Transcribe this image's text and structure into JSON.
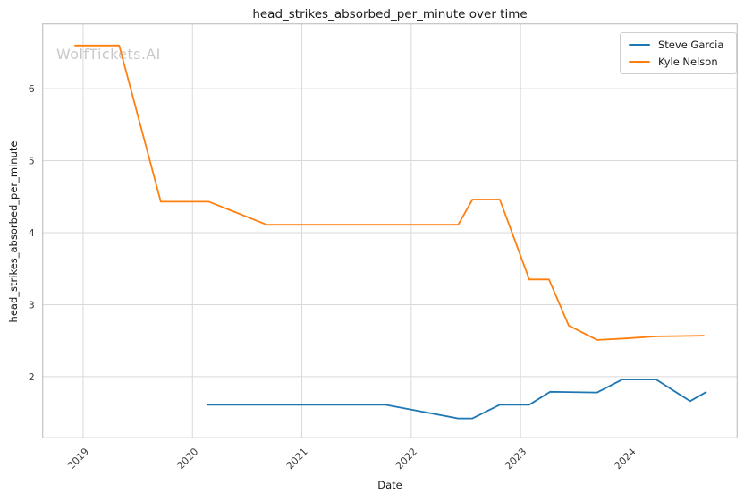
{
  "figure": {
    "watermark": "WolfTickets.AI"
  },
  "chart_data": {
    "type": "line",
    "title": "head_strikes_absorbed_per_minute over time",
    "xlabel": "Date",
    "ylabel": "head_strikes_absorbed_per_minute",
    "xlim": [
      2018.63,
      2024.98
    ],
    "ylim": [
      1.15,
      6.9
    ],
    "xticks": [
      2019,
      2020,
      2021,
      2022,
      2023,
      2024
    ],
    "yticks": [
      2,
      3,
      4,
      5,
      6
    ],
    "grid": true,
    "legend_position": "upper right",
    "series": [
      {
        "name": "Steve Garcia",
        "color": "#1f77b4",
        "points": [
          [
            2020.13,
            1.61
          ],
          [
            2021.76,
            1.61
          ],
          [
            2022.43,
            1.42
          ],
          [
            2022.56,
            1.42
          ],
          [
            2022.81,
            1.61
          ],
          [
            2023.08,
            1.61
          ],
          [
            2023.27,
            1.79
          ],
          [
            2023.7,
            1.78
          ],
          [
            2023.93,
            1.96
          ],
          [
            2024.24,
            1.96
          ],
          [
            2024.55,
            1.66
          ],
          [
            2024.7,
            1.79
          ]
        ]
      },
      {
        "name": "Kyle Nelson",
        "color": "#ff7f0e",
        "points": [
          [
            2018.92,
            6.6
          ],
          [
            2019.33,
            6.6
          ],
          [
            2019.71,
            4.43
          ],
          [
            2020.15,
            4.43
          ],
          [
            2020.68,
            4.11
          ],
          [
            2022.43,
            4.11
          ],
          [
            2022.56,
            4.46
          ],
          [
            2022.81,
            4.46
          ],
          [
            2023.08,
            3.35
          ],
          [
            2023.26,
            3.35
          ],
          [
            2023.44,
            2.71
          ],
          [
            2023.7,
            2.51
          ],
          [
            2023.95,
            2.53
          ],
          [
            2024.24,
            2.56
          ],
          [
            2024.68,
            2.57
          ]
        ]
      }
    ]
  }
}
